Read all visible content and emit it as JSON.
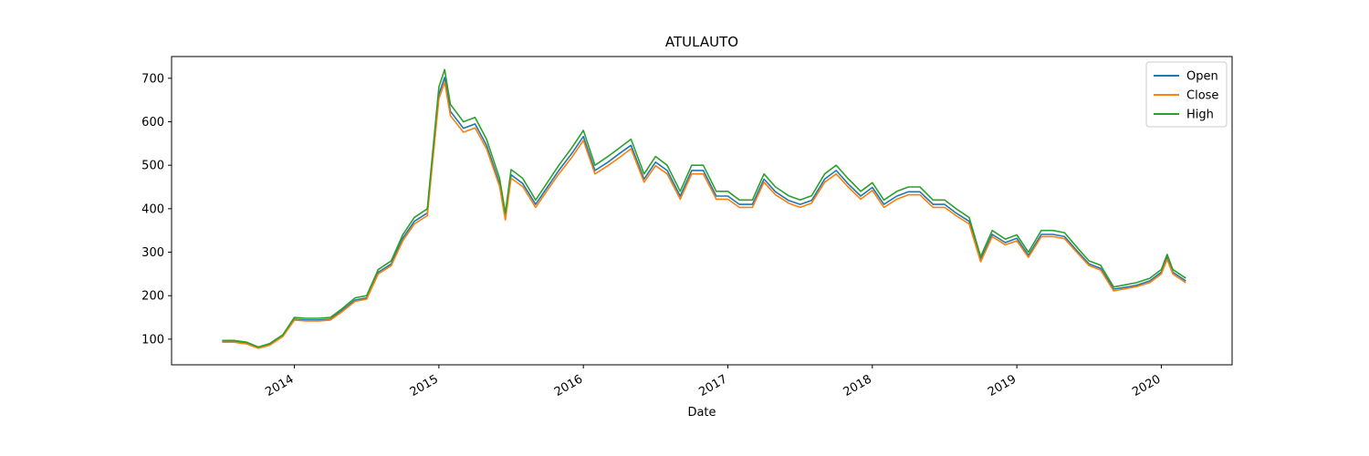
{
  "chart_data": {
    "type": "line",
    "title": "ATULAUTO",
    "xlabel": "Date",
    "x": [
      2013.5,
      2013.58,
      2013.67,
      2013.75,
      2013.83,
      2013.92,
      2014.0,
      2014.08,
      2014.17,
      2014.25,
      2014.33,
      2014.42,
      2014.5,
      2014.58,
      2014.67,
      2014.75,
      2014.83,
      2014.92,
      2015.0,
      2015.04,
      2015.08,
      2015.17,
      2015.25,
      2015.33,
      2015.42,
      2015.46,
      2015.5,
      2015.58,
      2015.67,
      2015.75,
      2015.83,
      2015.92,
      2016.0,
      2016.08,
      2016.17,
      2016.25,
      2016.33,
      2016.42,
      2016.5,
      2016.58,
      2016.67,
      2016.75,
      2016.83,
      2016.92,
      2017.0,
      2017.08,
      2017.17,
      2017.25,
      2017.33,
      2017.42,
      2017.5,
      2017.58,
      2017.67,
      2017.75,
      2017.83,
      2017.92,
      2018.0,
      2018.08,
      2018.17,
      2018.25,
      2018.33,
      2018.42,
      2018.5,
      2018.58,
      2018.67,
      2018.75,
      2018.83,
      2018.92,
      2019.0,
      2019.08,
      2019.17,
      2019.25,
      2019.33,
      2019.42,
      2019.5,
      2019.58,
      2019.67,
      2019.75,
      2019.83,
      2019.92,
      2020.0,
      2020.04,
      2020.08,
      2020.17
    ],
    "series": [
      {
        "name": "Open",
        "color": "#1f77b4",
        "values": [
          95,
          95,
          91,
          80,
          88,
          107,
          146,
          144,
          144,
          146,
          166,
          190,
          195,
          254,
          273,
          332,
          371,
          390,
          663,
          702,
          624,
          585,
          595,
          546,
          458,
          380,
          478,
          458,
          410,
          449,
          488,
          527,
          566,
          488,
          507,
          527,
          546,
          468,
          507,
          488,
          429,
          488,
          488,
          429,
          429,
          410,
          410,
          468,
          439,
          419,
          410,
          419,
          468,
          488,
          458,
          429,
          449,
          410,
          429,
          439,
          439,
          410,
          410,
          390,
          371,
          283,
          341,
          322,
          332,
          293,
          341,
          341,
          336,
          302,
          273,
          263,
          215,
          219,
          224,
          234,
          254,
          288,
          254,
          234
        ]
      },
      {
        "name": "Close",
        "color": "#ff7f0e",
        "values": [
          93,
          93,
          89,
          79,
          86,
          106,
          144,
          142,
          142,
          144,
          163,
          187,
          192,
          250,
          269,
          326,
          365,
          384,
          653,
          691,
          614,
          576,
          586,
          538,
          451,
          374,
          470,
          451,
          403,
          442,
          480,
          518,
          557,
          480,
          499,
          518,
          538,
          461,
          499,
          480,
          422,
          480,
          480,
          422,
          422,
          403,
          403,
          461,
          432,
          413,
          403,
          413,
          461,
          480,
          451,
          422,
          442,
          403,
          422,
          432,
          432,
          403,
          403,
          384,
          365,
          278,
          336,
          317,
          326,
          288,
          336,
          336,
          331,
          298,
          269,
          259,
          211,
          216,
          221,
          230,
          250,
          283,
          250,
          230
        ]
      },
      {
        "name": "High",
        "color": "#2ca02c",
        "values": [
          97,
          97,
          93,
          82,
          90,
          110,
          150,
          148,
          148,
          150,
          170,
          195,
          200,
          260,
          280,
          340,
          380,
          400,
          680,
          720,
          640,
          600,
          610,
          560,
          470,
          390,
          490,
          470,
          420,
          460,
          500,
          540,
          580,
          500,
          520,
          540,
          560,
          480,
          520,
          500,
          440,
          500,
          500,
          440,
          440,
          420,
          420,
          480,
          450,
          430,
          420,
          430,
          480,
          500,
          470,
          440,
          460,
          420,
          440,
          450,
          450,
          420,
          420,
          400,
          380,
          290,
          350,
          330,
          340,
          300,
          350,
          350,
          345,
          310,
          280,
          270,
          220,
          225,
          230,
          240,
          260,
          295,
          260,
          240
        ]
      }
    ],
    "xlim": [
      2013.15,
      2020.49
    ],
    "xticks": [
      2014,
      2015,
      2016,
      2017,
      2018,
      2019,
      2020
    ],
    "ylim": [
      41,
      750
    ],
    "yticks": [
      100,
      200,
      300,
      400,
      500,
      600,
      700
    ],
    "legend": "upper right",
    "grid": false
  }
}
